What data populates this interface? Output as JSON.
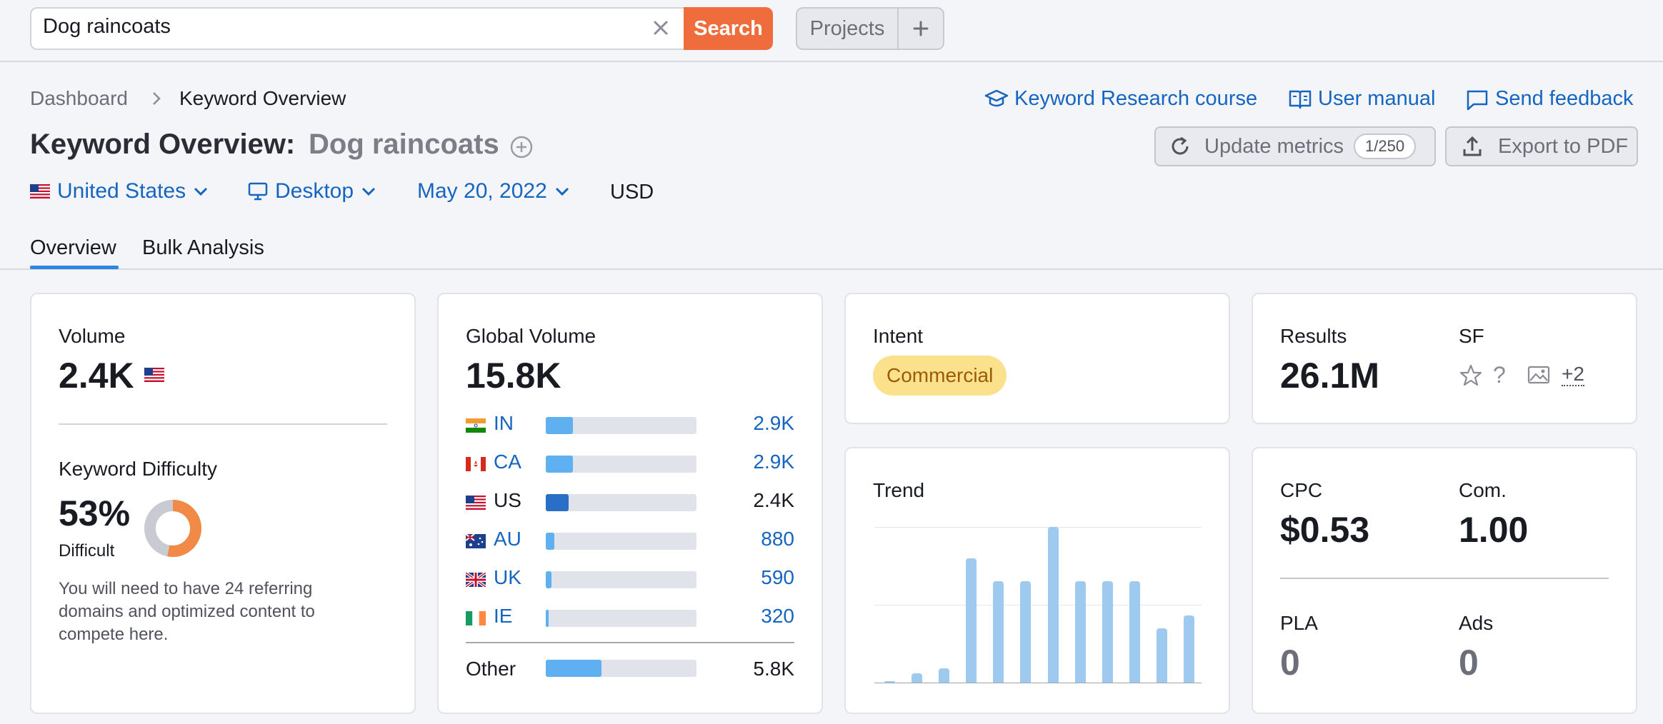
{
  "search": {
    "query": "Dog raincoats",
    "button": "Search"
  },
  "topbar": {
    "projects": "Projects",
    "plus": "+"
  },
  "breadcrumb": {
    "root": "Dashboard",
    "current": "Keyword Overview"
  },
  "help_links": {
    "course": "Keyword Research course",
    "manual": "User manual",
    "feedback": "Send feedback"
  },
  "title": {
    "prefix": "Keyword Overview:",
    "keyword": "Dog raincoats"
  },
  "actions": {
    "update": "Update metrics",
    "update_count": "1/250",
    "export": "Export to PDF"
  },
  "filters": {
    "country": "United States",
    "device": "Desktop",
    "date": "May 20, 2022",
    "currency": "USD"
  },
  "tabs": [
    {
      "label": "Overview",
      "active": true
    },
    {
      "label": "Bulk Analysis",
      "active": false
    }
  ],
  "volume": {
    "label": "Volume",
    "value": "2.4K"
  },
  "kd": {
    "label": "Keyword Difficulty",
    "value": "53%",
    "level": "Difficult",
    "percent": 53,
    "note": "You will need to have 24 referring domains and optimized content to compete here."
  },
  "global_volume": {
    "label": "Global Volume",
    "value": "15.8K",
    "rows": [
      {
        "code": "IN",
        "value": "2.9K",
        "share": 0.18,
        "link": true
      },
      {
        "code": "CA",
        "value": "2.9K",
        "share": 0.18,
        "link": true
      },
      {
        "code": "US",
        "value": "2.4K",
        "share": 0.15,
        "link": false
      },
      {
        "code": "AU",
        "value": "880",
        "share": 0.055,
        "link": true
      },
      {
        "code": "UK",
        "value": "590",
        "share": 0.037,
        "link": true
      },
      {
        "code": "IE",
        "value": "320",
        "share": 0.02,
        "link": true
      }
    ],
    "other": {
      "label": "Other",
      "value": "5.8K",
      "share": 0.37
    }
  },
  "intent": {
    "label": "Intent",
    "value": "Commercial"
  },
  "results": {
    "label": "Results",
    "value": "26.1M",
    "sf_label": "SF",
    "sf_more": "+2"
  },
  "trend": {
    "label": "Trend",
    "values": [
      1,
      6,
      9,
      80,
      65,
      65,
      100,
      65,
      65,
      65,
      35,
      43
    ]
  },
  "cpc": {
    "cpc_label": "CPC",
    "cpc_value": "$0.53",
    "com_label": "Com.",
    "com_value": "1.00",
    "pla_label": "PLA",
    "pla_value": "0",
    "ads_label": "Ads",
    "ads_value": "0"
  },
  "colors": {
    "accent": "#1665c0",
    "search_button": "#ef6c3d",
    "intent_bg": "#fbe18c",
    "intent_text": "#9b5b06",
    "kd_orange": "#f18a46",
    "bar": "#5fb0f1"
  }
}
